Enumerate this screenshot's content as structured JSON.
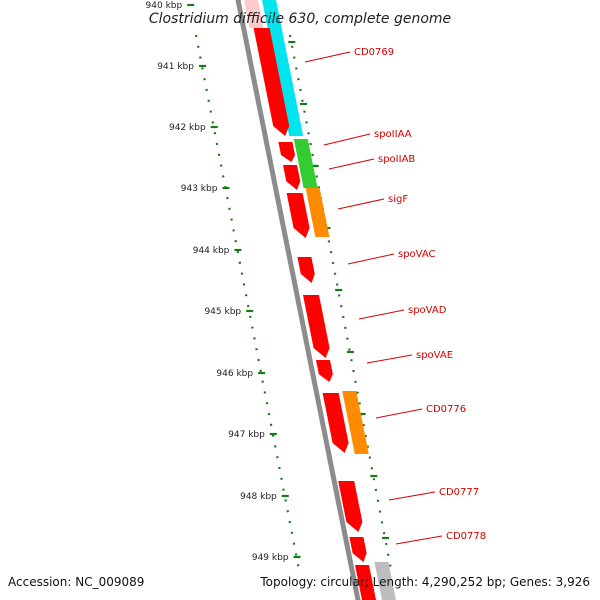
{
  "title": "Clostridium difficile 630, complete genome",
  "footer": {
    "accession": "Accession: NC_009089",
    "summary": "Topology: circular; Length: 4,290,252 bp; Genes: 3,926"
  },
  "colors": {
    "backbone": "#8c8c8c",
    "ruler": "#1a7a1a",
    "label": "#d40000",
    "leader": "#d40000",
    "red_feature": "#ff0000",
    "cyan_feature": "#00e5ee",
    "green_feature": "#33cc33",
    "orange_feature": "#ff8c00",
    "grey_feature": "#bdbdbd",
    "pink_feature": "#ffcccc"
  },
  "ruler": {
    "unit": "kbp",
    "ticks": [
      "940 kbp",
      "941 kbp",
      "942 kbp",
      "943 kbp",
      "944 kbp",
      "945 kbp",
      "946 kbp",
      "947 kbp",
      "948 kbp",
      "949 kbp"
    ]
  },
  "gene_labels": [
    "CD0769",
    "spoIIAA",
    "spoIIAB",
    "sigF",
    "spoVAC",
    "spoVAD",
    "spoVAE",
    "CD0776",
    "CD0777",
    "CD0778"
  ]
}
